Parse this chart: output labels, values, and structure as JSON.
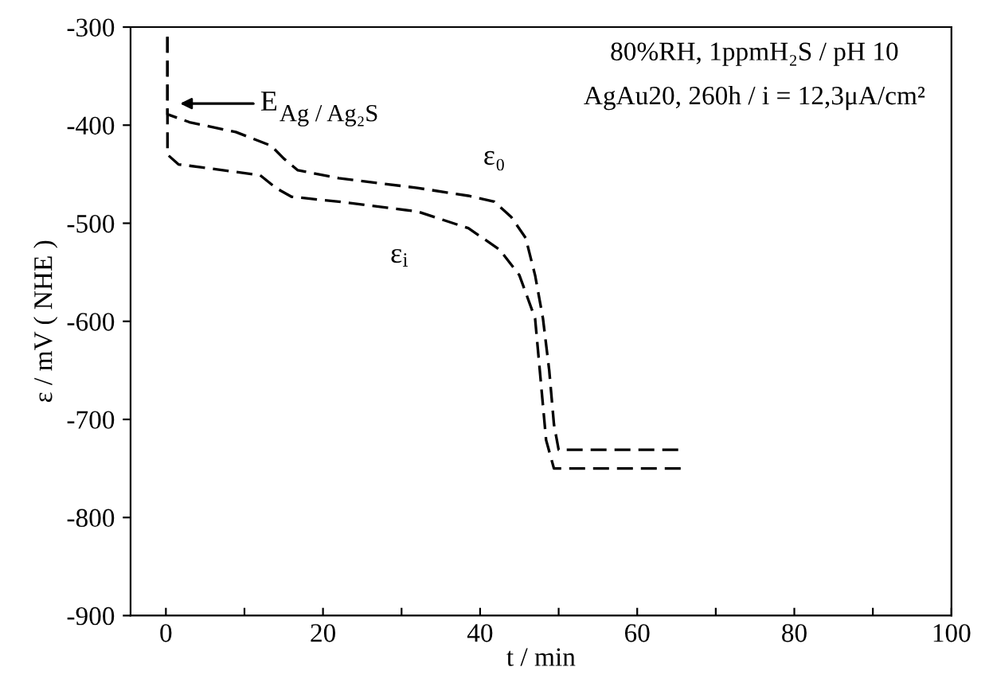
{
  "chart_data": {
    "type": "line",
    "xlabel": "t / min",
    "ylabel": "ε / mV ( NHE )",
    "xlim": [
      -4.5,
      100
    ],
    "ylim": [
      -900,
      -300
    ],
    "xticks": [
      0,
      {
        "value": 10,
        "label": null
      },
      20,
      {
        "value": 30,
        "label": null
      },
      40,
      {
        "value": 50,
        "label": null
      },
      60,
      {
        "value": 70,
        "label": null
      },
      80,
      {
        "value": 90,
        "label": null
      },
      100
    ],
    "yticks": [
      -900,
      -800,
      -700,
      -600,
      -500,
      -400,
      -300
    ],
    "grid": false,
    "legend": false,
    "line_style": "dashed",
    "marker": "none",
    "series": [
      {
        "name": "ε₀",
        "color": "#000000",
        "x": [
          0.2,
          0.2,
          3,
          8.9,
          13.4,
          15,
          16.8,
          22,
          32,
          38.5,
          41.8,
          44,
          45.8,
          47,
          48,
          48.8,
          49.4,
          50,
          65.6
        ],
        "values": [
          -310,
          -389,
          -397,
          -407,
          -421,
          -434,
          -446,
          -454,
          -464,
          -472,
          -478,
          -494,
          -515,
          -553,
          -597,
          -650,
          -705,
          -731,
          -731
        ]
      },
      {
        "name": "ε$_{i}$",
        "color": "#000000",
        "x": [
          0.2,
          0.2,
          1.6,
          5.5,
          12,
          14,
          16,
          22,
          32,
          38.5,
          42.5,
          45,
          47,
          48.4,
          49.4,
          65.6
        ],
        "values": [
          -310,
          -430,
          -440,
          -444,
          -451,
          -464,
          -473,
          -478,
          -488,
          -505,
          -527,
          -553,
          -597,
          -721,
          -750,
          -750
        ]
      }
    ],
    "annotations": [
      "E$_{Ag / Ag₂S}$",
      "80%RH, 1ppmH₂S / pH 10",
      "AgAu20, 260h / i = 12,3μA/cm²"
    ]
  }
}
